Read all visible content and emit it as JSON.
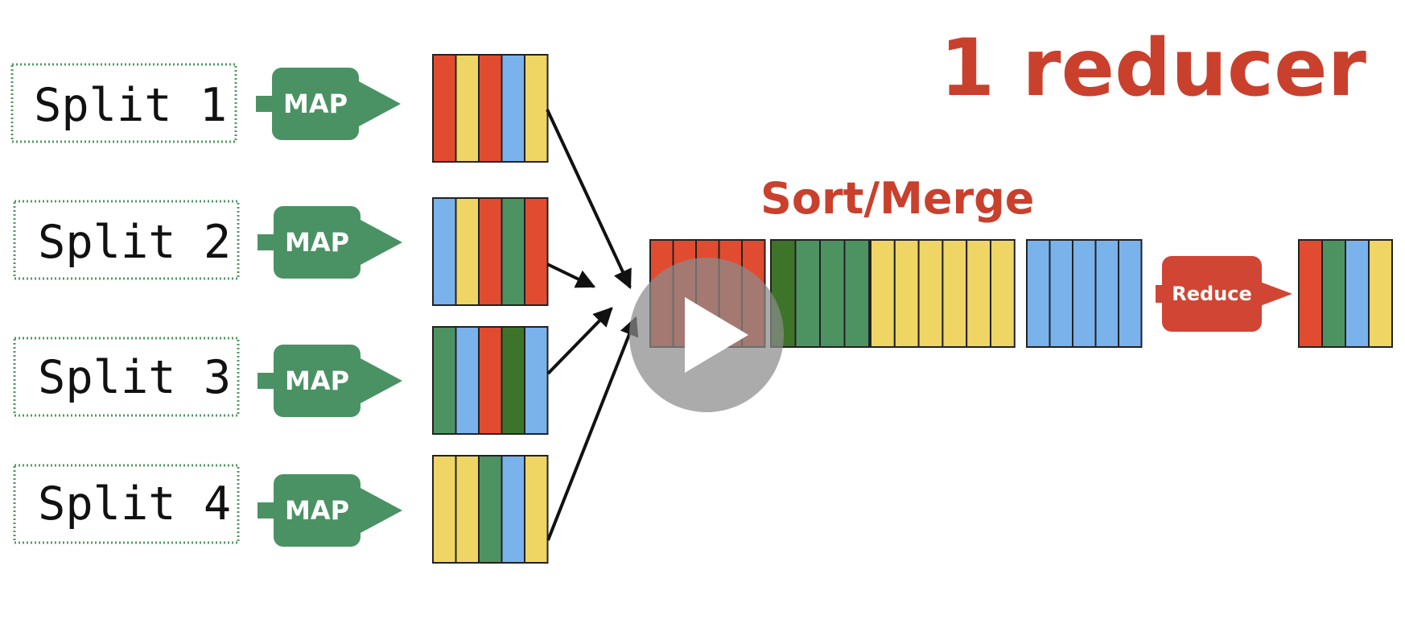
{
  "title": "1 reducer",
  "subtitle": "Sort/Merge",
  "splits": [
    {
      "label": "Split 1",
      "map_label": "MAP",
      "output": [
        "red",
        "yellow",
        "red",
        "blue",
        "yellow"
      ]
    },
    {
      "label": "Split 2",
      "map_label": "MAP",
      "output": [
        "blue",
        "yellow",
        "red",
        "green",
        "red"
      ]
    },
    {
      "label": "Split 3",
      "map_label": "MAP",
      "output": [
        "green",
        "blue",
        "red",
        "darkgreen",
        "blue"
      ]
    },
    {
      "label": "Split 4",
      "map_label": "MAP",
      "output": [
        "yellow",
        "yellow",
        "green",
        "blue",
        "yellow"
      ]
    }
  ],
  "merged_groups": [
    [
      "red",
      "red",
      "red",
      "red",
      "red"
    ],
    [
      "darkgreen",
      "green",
      "green",
      "green"
    ],
    [
      "yellow",
      "yellow",
      "yellow",
      "yellow",
      "yellow",
      "yellow"
    ],
    [
      "blue",
      "blue",
      "blue",
      "blue",
      "blue"
    ]
  ],
  "reduce_label": "Reduce",
  "result": [
    "red",
    "green",
    "blue",
    "yellow"
  ],
  "colors": {
    "red": "#e14c30",
    "yellow": "#efd563",
    "blue": "#7ab2ec",
    "green": "#4d9361",
    "darkgreen": "#3e7429",
    "map_green": "#4a9263",
    "reduce_red": "#d14534",
    "title_red": "#c9402d",
    "play_overlay": "#8a8a8a"
  },
  "icons": {
    "play": "play-icon"
  }
}
